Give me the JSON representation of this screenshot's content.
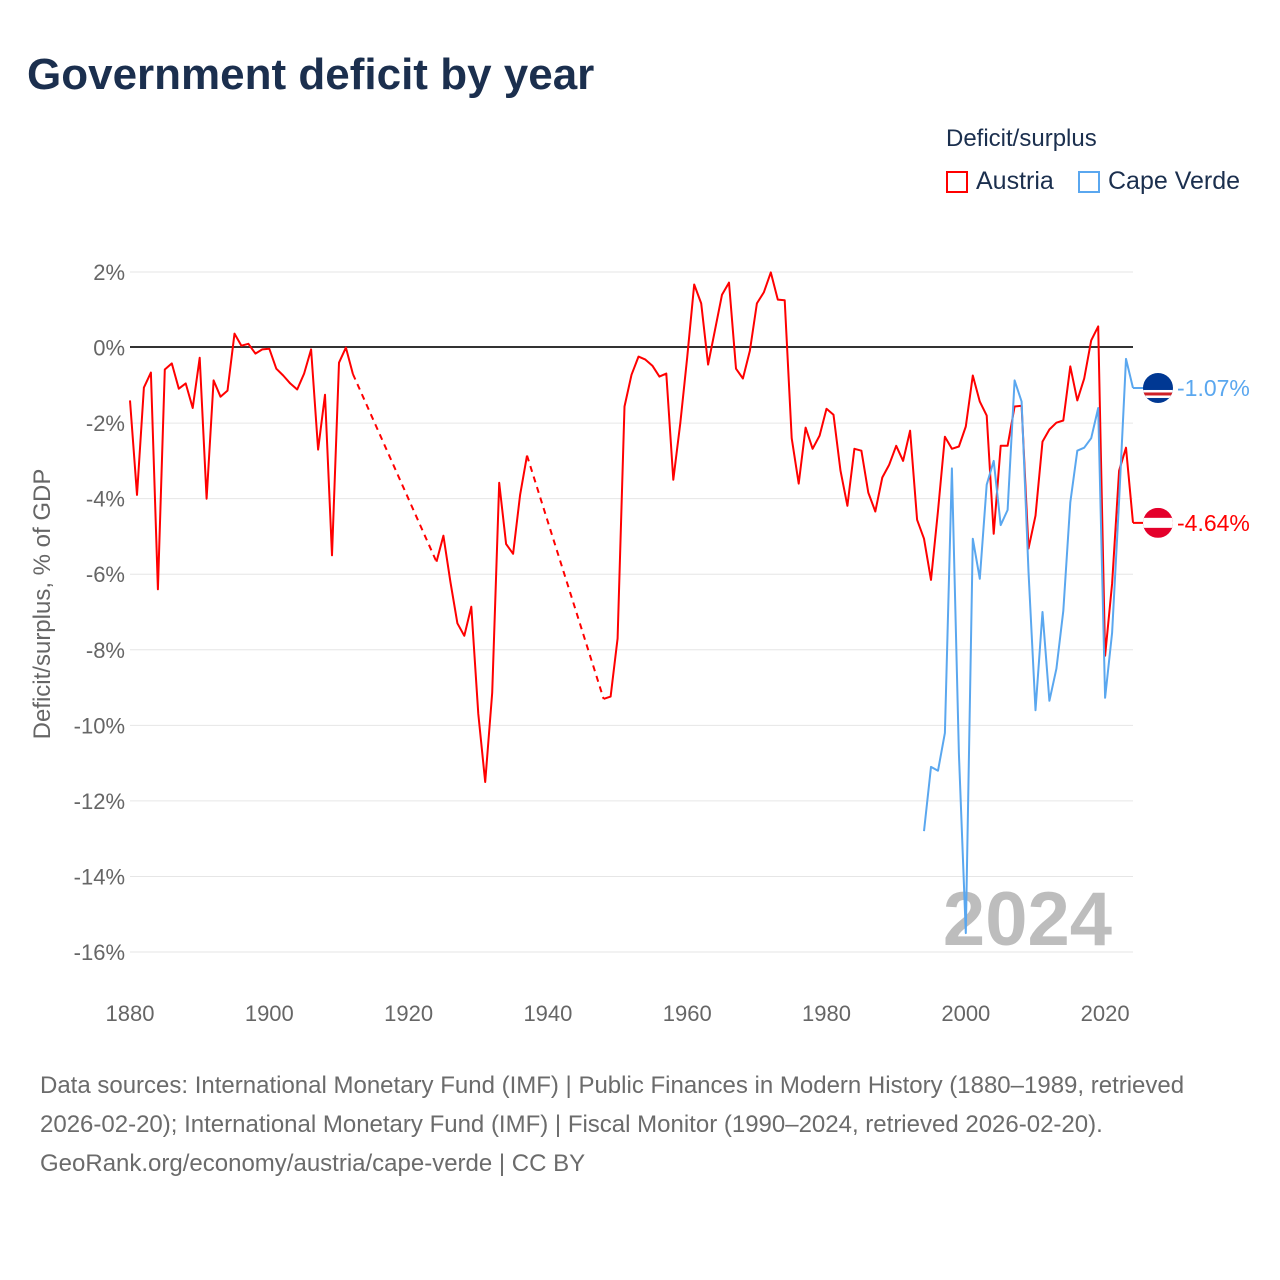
{
  "title": "Government deficit by year",
  "legend": {
    "title": "Deficit/surplus",
    "items": [
      {
        "name": "Austria",
        "color": "#ff0000"
      },
      {
        "name": "Cape Verde",
        "color": "#5aa7ef"
      }
    ]
  },
  "footer": {
    "sources": "Data sources: International Monetary Fund (IMF) | Public Finances in Modern History (1880–1989, retrieved 2026-02-20); International Monetary Fund (IMF) | Fiscal Monitor (1990–2024, retrieved 2026-02-20).",
    "credit": "GeoRank.org/economy/austria/cape-verde | CC BY"
  },
  "chart_data": {
    "type": "line",
    "title": "Government deficit by year",
    "xlabel": "",
    "ylabel": "Deficit/surplus, % of GDP",
    "xlim": [
      1880,
      2024
    ],
    "ylim": [
      -16,
      2
    ],
    "x_ticks": [
      "1880",
      "1900",
      "1920",
      "1940",
      "1960",
      "1980",
      "2000",
      "2020"
    ],
    "y_ticks": [
      {
        "v": 2,
        "label": "2%"
      },
      {
        "v": 0,
        "label": "0%"
      },
      {
        "v": -2,
        "label": "-2%"
      },
      {
        "v": -4,
        "label": "-4%"
      },
      {
        "v": -6,
        "label": "-6%"
      },
      {
        "v": -8,
        "label": "-8%"
      },
      {
        "v": -10,
        "label": "-10%"
      },
      {
        "v": -12,
        "label": "-12%"
      },
      {
        "v": -14,
        "label": "-14%"
      },
      {
        "v": -16,
        "label": "-16%"
      }
    ],
    "watermark_year": "2024",
    "series": [
      {
        "name": "Austria",
        "color": "#ff0000",
        "end_label": "-4.64%",
        "points": [
          [
            1880,
            -1.4
          ],
          [
            1881,
            -3.9
          ],
          [
            1882,
            -1.06
          ],
          [
            1883,
            -0.66
          ],
          [
            1884,
            -6.4
          ],
          [
            1885,
            -0.58
          ],
          [
            1886,
            -0.42
          ],
          [
            1887,
            -1.09
          ],
          [
            1888,
            -0.95
          ],
          [
            1889,
            -1.6
          ],
          [
            1890,
            -0.27
          ],
          [
            1891,
            -4.0
          ],
          [
            1892,
            -0.87
          ],
          [
            1893,
            -1.3
          ],
          [
            1894,
            -1.14
          ],
          [
            1895,
            0.37
          ],
          [
            1896,
            0.05
          ],
          [
            1897,
            0.1
          ],
          [
            1898,
            -0.16
          ],
          [
            1899,
            -0.05
          ],
          [
            1900,
            -0.03
          ],
          [
            1901,
            -0.56
          ],
          [
            1902,
            -0.74
          ],
          [
            1903,
            -0.95
          ],
          [
            1904,
            -1.11
          ],
          [
            1905,
            -0.69
          ],
          [
            1906,
            -0.05
          ],
          [
            1907,
            -2.7
          ],
          [
            1908,
            -1.25
          ],
          [
            1909,
            -5.5
          ],
          [
            1910,
            -0.4
          ],
          [
            1911,
            0.0
          ],
          [
            1912,
            -0.7
          ],
          [
            1924,
            -5.67
          ],
          [
            1925,
            -4.98
          ],
          [
            1926,
            -6.2
          ],
          [
            1927,
            -7.3
          ],
          [
            1928,
            -7.63
          ],
          [
            1929,
            -6.86
          ],
          [
            1930,
            -9.7
          ],
          [
            1931,
            -11.5
          ],
          [
            1932,
            -9.14
          ],
          [
            1933,
            -3.58
          ],
          [
            1934,
            -5.2
          ],
          [
            1935,
            -5.46
          ],
          [
            1936,
            -3.9
          ],
          [
            1937,
            -2.86
          ],
          [
            1948,
            -9.3
          ],
          [
            1949,
            -9.24
          ],
          [
            1950,
            -7.7
          ],
          [
            1951,
            -1.56
          ],
          [
            1952,
            -0.72
          ],
          [
            1953,
            -0.24
          ],
          [
            1954,
            -0.32
          ],
          [
            1955,
            -0.48
          ],
          [
            1956,
            -0.77
          ],
          [
            1957,
            -0.69
          ],
          [
            1958,
            -3.5
          ],
          [
            1959,
            -2.0
          ],
          [
            1960,
            -0.26
          ],
          [
            1961,
            1.67
          ],
          [
            1962,
            1.17
          ],
          [
            1963,
            -0.45
          ],
          [
            1964,
            0.48
          ],
          [
            1965,
            1.4
          ],
          [
            1966,
            1.72
          ],
          [
            1967,
            -0.56
          ],
          [
            1968,
            -0.82
          ],
          [
            1969,
            -0.08
          ],
          [
            1970,
            1.17
          ],
          [
            1971,
            1.46
          ],
          [
            1972,
            1.99
          ],
          [
            1973,
            1.27
          ],
          [
            1974,
            1.25
          ],
          [
            1975,
            -2.4
          ],
          [
            1976,
            -3.6
          ],
          [
            1977,
            -2.12
          ],
          [
            1978,
            -2.68
          ],
          [
            1979,
            -2.33
          ],
          [
            1980,
            -1.62
          ],
          [
            1981,
            -1.78
          ],
          [
            1982,
            -3.26
          ],
          [
            1983,
            -4.19
          ],
          [
            1984,
            -2.68
          ],
          [
            1985,
            -2.73
          ],
          [
            1986,
            -3.84
          ],
          [
            1987,
            -4.34
          ],
          [
            1988,
            -3.44
          ],
          [
            1989,
            -3.1
          ],
          [
            1990,
            -2.6
          ],
          [
            1991,
            -3.0
          ],
          [
            1992,
            -2.2
          ],
          [
            1993,
            -4.56
          ],
          [
            1994,
            -5.06
          ],
          [
            1995,
            -6.15
          ],
          [
            1996,
            -4.32
          ],
          [
            1997,
            -2.36
          ],
          [
            1998,
            -2.68
          ],
          [
            1999,
            -2.62
          ],
          [
            2000,
            -2.09
          ],
          [
            2001,
            -0.74
          ],
          [
            2002,
            -1.43
          ],
          [
            2003,
            -1.8
          ],
          [
            2004,
            -4.93
          ],
          [
            2005,
            -2.6
          ],
          [
            2006,
            -2.6
          ],
          [
            2007,
            -1.56
          ],
          [
            2008,
            -1.54
          ],
          [
            2009,
            -5.32
          ],
          [
            2010,
            -4.45
          ],
          [
            2011,
            -2.49
          ],
          [
            2012,
            -2.17
          ],
          [
            2013,
            -1.99
          ],
          [
            2014,
            -1.93
          ],
          [
            2015,
            -0.5
          ],
          [
            2016,
            -1.4
          ],
          [
            2017,
            -0.82
          ],
          [
            2018,
            0.19
          ],
          [
            2019,
            0.56
          ],
          [
            2020,
            -8.16
          ],
          [
            2021,
            -6.25
          ],
          [
            2022,
            -3.26
          ],
          [
            2023,
            -2.65
          ],
          [
            2024,
            -4.64
          ]
        ]
      },
      {
        "name": "Cape Verde",
        "color": "#5aa7ef",
        "end_label": "-1.07%",
        "points": [
          [
            1994,
            -12.8
          ],
          [
            1995,
            -11.1
          ],
          [
            1996,
            -11.2
          ],
          [
            1997,
            -10.2
          ],
          [
            1998,
            -3.2
          ],
          [
            1999,
            -10.75
          ],
          [
            2000,
            -15.5
          ],
          [
            2001,
            -5.06
          ],
          [
            2002,
            -6.12
          ],
          [
            2003,
            -3.63
          ],
          [
            2004,
            -3.0
          ],
          [
            2005,
            -4.7
          ],
          [
            2006,
            -4.3
          ],
          [
            2007,
            -0.87
          ],
          [
            2008,
            -1.43
          ],
          [
            2009,
            -5.93
          ],
          [
            2010,
            -9.6
          ],
          [
            2011,
            -7.0
          ],
          [
            2012,
            -9.35
          ],
          [
            2013,
            -8.5
          ],
          [
            2014,
            -6.97
          ],
          [
            2015,
            -4.1
          ],
          [
            2016,
            -2.73
          ],
          [
            2017,
            -2.65
          ],
          [
            2018,
            -2.4
          ],
          [
            2019,
            -1.6
          ],
          [
            2020,
            -9.27
          ],
          [
            2021,
            -7.55
          ],
          [
            2022,
            -4.05
          ],
          [
            2023,
            -0.3
          ],
          [
            2024,
            -1.07
          ]
        ]
      }
    ]
  }
}
